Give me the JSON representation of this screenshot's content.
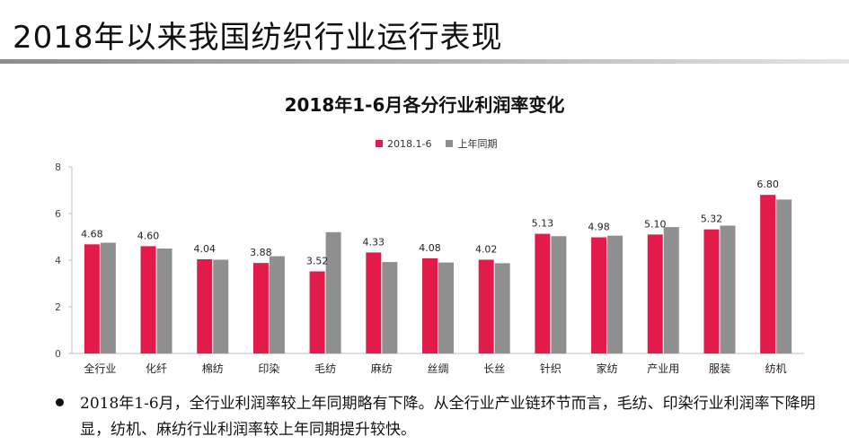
{
  "slide": {
    "title": "2018年以来我国纺织行业运行表现",
    "bullet": "2018年1-6月，全行业利润率较上年同期略有下降。从全行业产业链环节而言，毛纺、印染行业利润率下降明显，纺机、麻纺行业利润率较上年同期提升较快。"
  },
  "colors": {
    "current": "#e31b4b",
    "previous": "#8f8f8f"
  },
  "chart_data": {
    "type": "bar",
    "title": "2018年1-6月各分行业利润率变化",
    "categories": [
      "全行业",
      "化纤",
      "棉纺",
      "印染",
      "毛纺",
      "麻纺",
      "丝绸",
      "长丝",
      "针织",
      "家纺",
      "产业用",
      "服装",
      "纺机"
    ],
    "series": [
      {
        "name": "2018.1-6",
        "values": [
          4.68,
          4.6,
          4.04,
          3.88,
          3.52,
          4.33,
          4.08,
          4.02,
          5.13,
          4.98,
          5.1,
          5.32,
          6.8
        ]
      },
      {
        "name": "上年同期",
        "values": [
          4.75,
          4.5,
          4.02,
          4.17,
          5.2,
          3.92,
          3.9,
          3.87,
          5.03,
          5.05,
          5.42,
          5.48,
          6.6
        ]
      }
    ],
    "data_labels": [
      "4.68",
      "4.60",
      "4.04",
      "3.88",
      "3.52",
      "4.33",
      "4.08",
      "4.02",
      "5.13",
      "4.98",
      "5.10",
      "5.32",
      "6.80"
    ],
    "ylim": [
      0,
      8
    ],
    "yticks": [
      "0",
      "2",
      "4",
      "6",
      "8"
    ],
    "legend": "top-center",
    "grid": false
  }
}
